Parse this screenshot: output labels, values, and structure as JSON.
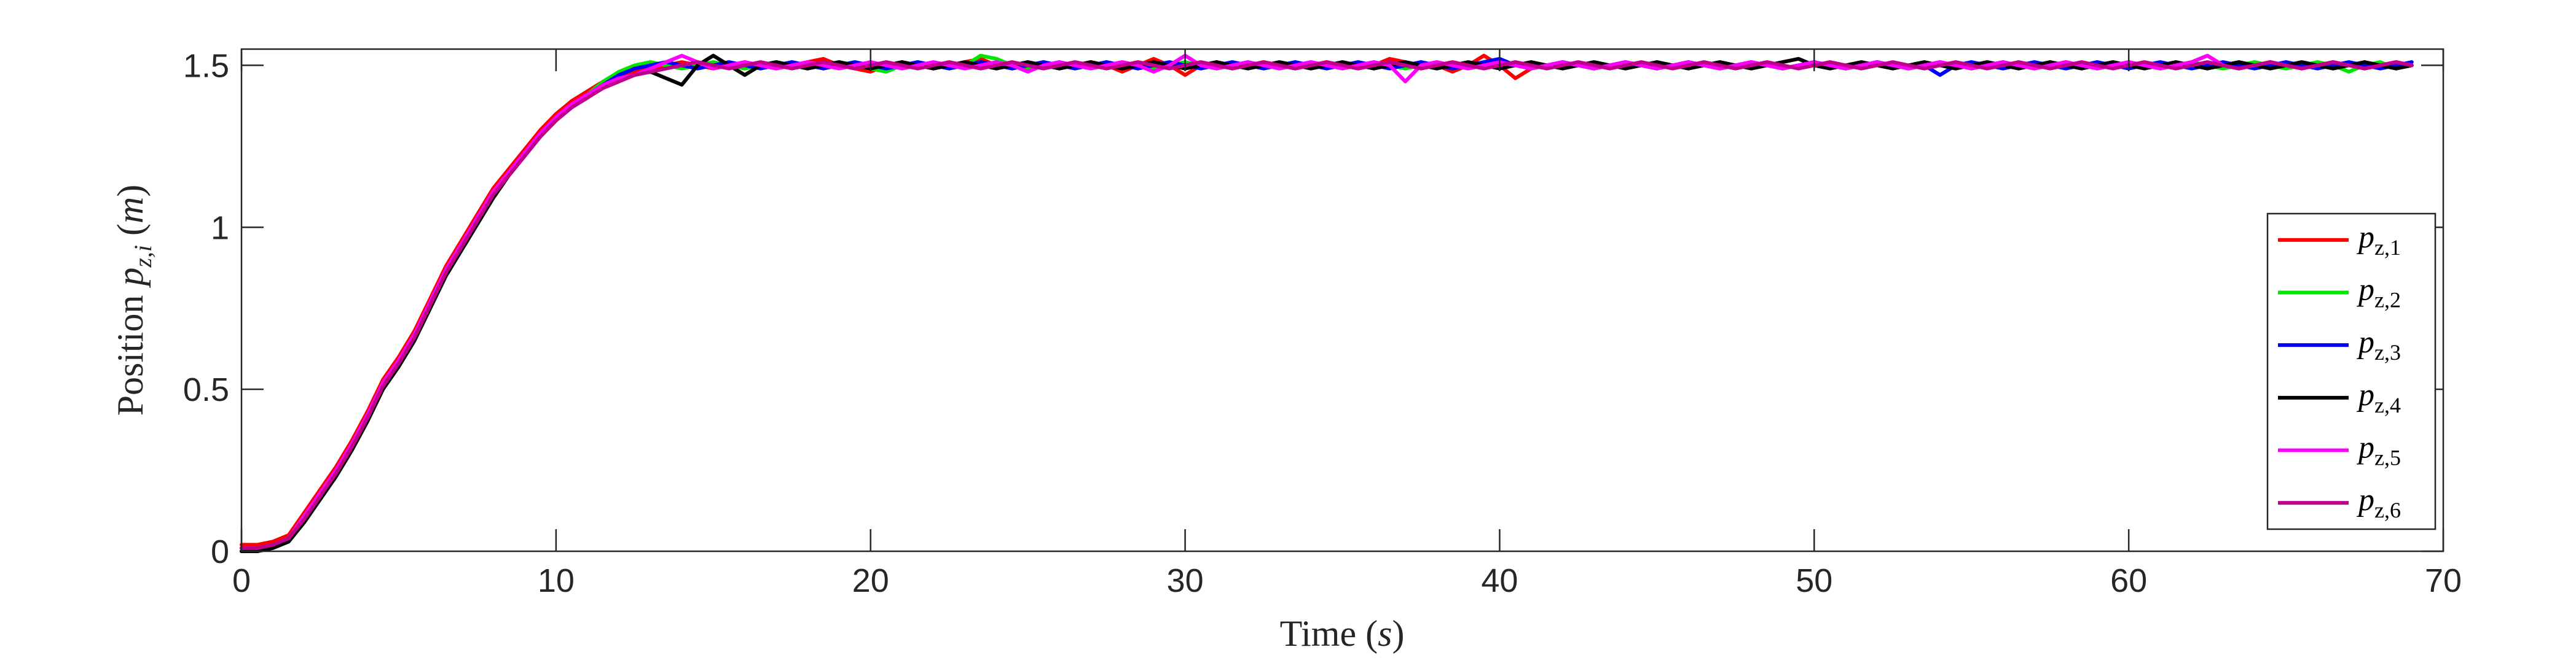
{
  "chart_data": {
    "type": "line",
    "title": "",
    "xlabel": "Time (s)",
    "ylabel": "Position p_{z,i} (m)",
    "xlim": [
      0,
      70
    ],
    "ylim": [
      0,
      1.55
    ],
    "x_ticks": [
      "0",
      "10",
      "20",
      "30",
      "40",
      "50",
      "60",
      "70"
    ],
    "y_ticks": [
      "0",
      "0.5",
      "1",
      "1.5"
    ],
    "grid": false,
    "legend_position": "bottom-right",
    "time_step": 0.5,
    "series": [
      {
        "name": "p_{z,1}",
        "color": "#ff0000",
        "values": [
          0.02,
          0.02,
          0.03,
          0.05,
          0.12,
          0.19,
          0.26,
          0.34,
          0.43,
          0.53,
          0.6,
          0.68,
          0.78,
          0.88,
          0.96,
          1.04,
          1.12,
          1.18,
          1.24,
          1.3,
          1.35,
          1.39,
          1.42,
          1.45,
          1.47,
          1.48,
          1.49,
          1.5,
          1.51,
          1.5,
          1.49,
          1.5,
          1.51,
          1.5,
          1.49,
          1.5,
          1.51,
          1.52,
          1.5,
          1.49,
          1.48,
          1.5,
          1.51,
          1.5,
          1.49,
          1.5,
          1.51,
          1.52,
          1.5,
          1.49,
          1.5,
          1.51,
          1.49,
          1.5,
          1.51,
          1.5,
          1.48,
          1.5,
          1.52,
          1.5,
          1.47,
          1.5,
          1.51,
          1.49,
          1.5,
          1.51,
          1.5,
          1.49,
          1.5,
          1.51,
          1.5,
          1.49,
          1.5,
          1.52,
          1.51,
          1.49,
          1.5,
          1.48,
          1.5,
          1.53,
          1.5,
          1.46,
          1.49,
          1.5,
          1.51,
          1.5,
          1.49,
          1.5,
          1.51,
          1.5,
          1.49,
          1.5,
          1.51,
          1.5,
          1.49,
          1.5,
          1.51,
          1.5,
          1.49,
          1.5,
          1.51,
          1.5,
          1.49,
          1.5,
          1.51,
          1.5,
          1.49,
          1.5,
          1.51,
          1.5,
          1.49,
          1.5,
          1.51,
          1.5,
          1.49,
          1.5,
          1.51,
          1.5,
          1.49,
          1.5,
          1.51,
          1.5,
          1.49,
          1.5,
          1.51,
          1.53,
          1.5,
          1.49,
          1.5,
          1.51,
          1.5,
          1.49,
          1.5,
          1.51,
          1.5,
          1.49,
          1.5,
          1.51,
          1.5
        ]
      },
      {
        "name": "p_{z,2}",
        "color": "#00e600",
        "values": [
          0.01,
          0.01,
          0.02,
          0.04,
          0.11,
          0.18,
          0.25,
          0.33,
          0.42,
          0.52,
          0.59,
          0.67,
          0.77,
          0.87,
          0.95,
          1.03,
          1.11,
          1.17,
          1.23,
          1.29,
          1.34,
          1.38,
          1.41,
          1.45,
          1.48,
          1.5,
          1.51,
          1.5,
          1.49,
          1.5,
          1.51,
          1.5,
          1.49,
          1.5,
          1.51,
          1.5,
          1.49,
          1.5,
          1.51,
          1.5,
          1.49,
          1.48,
          1.5,
          1.51,
          1.5,
          1.49,
          1.5,
          1.53,
          1.52,
          1.5,
          1.49,
          1.5,
          1.51,
          1.5,
          1.49,
          1.5,
          1.51,
          1.5,
          1.49,
          1.5,
          1.51,
          1.5,
          1.49,
          1.5,
          1.51,
          1.5,
          1.49,
          1.5,
          1.51,
          1.5,
          1.49,
          1.5,
          1.51,
          1.5,
          1.49,
          1.5,
          1.51,
          1.5,
          1.49,
          1.5,
          1.51,
          1.5,
          1.49,
          1.5,
          1.51,
          1.5,
          1.49,
          1.5,
          1.51,
          1.5,
          1.49,
          1.5,
          1.51,
          1.5,
          1.49,
          1.5,
          1.51,
          1.5,
          1.49,
          1.5,
          1.51,
          1.5,
          1.49,
          1.5,
          1.51,
          1.5,
          1.49,
          1.5,
          1.51,
          1.5,
          1.49,
          1.5,
          1.51,
          1.5,
          1.49,
          1.5,
          1.51,
          1.5,
          1.49,
          1.5,
          1.51,
          1.5,
          1.49,
          1.5,
          1.51,
          1.5,
          1.49,
          1.5,
          1.51,
          1.5,
          1.49,
          1.5,
          1.51,
          1.5,
          1.48,
          1.5,
          1.51,
          1.49,
          1.5
        ]
      },
      {
        "name": "p_{z,3}",
        "color": "#0000ff",
        "values": [
          0.0,
          0.0,
          0.01,
          0.03,
          0.1,
          0.17,
          0.24,
          0.32,
          0.41,
          0.51,
          0.58,
          0.66,
          0.76,
          0.86,
          0.94,
          1.02,
          1.1,
          1.16,
          1.22,
          1.28,
          1.33,
          1.37,
          1.4,
          1.44,
          1.47,
          1.49,
          1.5,
          1.51,
          1.5,
          1.49,
          1.5,
          1.51,
          1.5,
          1.49,
          1.5,
          1.51,
          1.5,
          1.49,
          1.5,
          1.51,
          1.5,
          1.49,
          1.5,
          1.51,
          1.5,
          1.49,
          1.5,
          1.51,
          1.5,
          1.49,
          1.5,
          1.51,
          1.5,
          1.49,
          1.5,
          1.51,
          1.5,
          1.49,
          1.5,
          1.51,
          1.5,
          1.49,
          1.5,
          1.51,
          1.5,
          1.49,
          1.5,
          1.51,
          1.5,
          1.49,
          1.5,
          1.51,
          1.5,
          1.49,
          1.5,
          1.51,
          1.5,
          1.49,
          1.5,
          1.51,
          1.52,
          1.5,
          1.49,
          1.5,
          1.51,
          1.5,
          1.49,
          1.5,
          1.51,
          1.5,
          1.49,
          1.5,
          1.51,
          1.5,
          1.49,
          1.5,
          1.51,
          1.5,
          1.49,
          1.5,
          1.51,
          1.5,
          1.49,
          1.5,
          1.51,
          1.5,
          1.49,
          1.5,
          1.47,
          1.5,
          1.51,
          1.5,
          1.49,
          1.5,
          1.51,
          1.5,
          1.49,
          1.5,
          1.51,
          1.5,
          1.49,
          1.5,
          1.51,
          1.5,
          1.49,
          1.5,
          1.51,
          1.5,
          1.49,
          1.5,
          1.51,
          1.5,
          1.49,
          1.5,
          1.51,
          1.5,
          1.49,
          1.5,
          1.51
        ]
      },
      {
        "name": "p_{z,4}",
        "color": "#000000",
        "values": [
          0.0,
          0.0,
          0.01,
          0.03,
          0.09,
          0.16,
          0.23,
          0.31,
          0.4,
          0.5,
          0.57,
          0.65,
          0.75,
          0.85,
          0.93,
          1.01,
          1.09,
          1.16,
          1.22,
          1.28,
          1.33,
          1.37,
          1.41,
          1.44,
          1.46,
          1.47,
          1.48,
          1.46,
          1.44,
          1.5,
          1.53,
          1.5,
          1.47,
          1.5,
          1.51,
          1.5,
          1.49,
          1.5,
          1.51,
          1.5,
          1.49,
          1.5,
          1.51,
          1.5,
          1.49,
          1.5,
          1.51,
          1.5,
          1.49,
          1.5,
          1.51,
          1.5,
          1.49,
          1.5,
          1.51,
          1.5,
          1.49,
          1.5,
          1.51,
          1.5,
          1.49,
          1.5,
          1.51,
          1.5,
          1.49,
          1.5,
          1.51,
          1.5,
          1.49,
          1.5,
          1.51,
          1.5,
          1.49,
          1.5,
          1.51,
          1.5,
          1.49,
          1.5,
          1.51,
          1.5,
          1.49,
          1.5,
          1.51,
          1.5,
          1.49,
          1.5,
          1.51,
          1.5,
          1.49,
          1.5,
          1.51,
          1.5,
          1.49,
          1.5,
          1.51,
          1.5,
          1.49,
          1.5,
          1.51,
          1.52,
          1.5,
          1.49,
          1.5,
          1.51,
          1.5,
          1.49,
          1.5,
          1.51,
          1.5,
          1.49,
          1.5,
          1.51,
          1.5,
          1.49,
          1.5,
          1.51,
          1.5,
          1.49,
          1.5,
          1.51,
          1.5,
          1.49,
          1.5,
          1.51,
          1.5,
          1.49,
          1.5,
          1.51,
          1.5,
          1.49,
          1.5,
          1.51,
          1.5,
          1.49,
          1.5,
          1.51,
          1.5,
          1.49,
          1.5
        ]
      },
      {
        "name": "p_{z,5}",
        "color": "#ff00ff",
        "values": [
          0.01,
          0.01,
          0.02,
          0.04,
          0.11,
          0.18,
          0.25,
          0.33,
          0.42,
          0.52,
          0.59,
          0.67,
          0.77,
          0.87,
          0.95,
          1.03,
          1.11,
          1.17,
          1.23,
          1.29,
          1.34,
          1.38,
          1.41,
          1.44,
          1.46,
          1.47,
          1.49,
          1.51,
          1.53,
          1.51,
          1.49,
          1.5,
          1.51,
          1.5,
          1.49,
          1.5,
          1.51,
          1.5,
          1.49,
          1.5,
          1.51,
          1.5,
          1.49,
          1.5,
          1.51,
          1.5,
          1.49,
          1.5,
          1.51,
          1.5,
          1.48,
          1.5,
          1.51,
          1.5,
          1.49,
          1.5,
          1.51,
          1.5,
          1.48,
          1.5,
          1.53,
          1.5,
          1.49,
          1.5,
          1.51,
          1.5,
          1.49,
          1.5,
          1.51,
          1.5,
          1.49,
          1.5,
          1.51,
          1.5,
          1.45,
          1.5,
          1.51,
          1.5,
          1.49,
          1.5,
          1.51,
          1.5,
          1.49,
          1.5,
          1.51,
          1.5,
          1.49,
          1.5,
          1.51,
          1.5,
          1.49,
          1.5,
          1.51,
          1.5,
          1.49,
          1.5,
          1.51,
          1.5,
          1.49,
          1.5,
          1.51,
          1.5,
          1.49,
          1.5,
          1.51,
          1.5,
          1.49,
          1.5,
          1.51,
          1.5,
          1.49,
          1.5,
          1.51,
          1.5,
          1.49,
          1.5,
          1.51,
          1.5,
          1.49,
          1.5,
          1.51,
          1.5,
          1.49,
          1.5,
          1.51,
          1.53,
          1.5,
          1.49,
          1.5,
          1.51,
          1.5,
          1.49,
          1.5,
          1.51,
          1.5,
          1.49,
          1.5,
          1.51,
          1.5
        ]
      },
      {
        "name": "p_{z,6}",
        "color": "#c0008c",
        "values": [
          0.01,
          0.01,
          0.02,
          0.04,
          0.1,
          0.17,
          0.24,
          0.32,
          0.41,
          0.51,
          0.58,
          0.66,
          0.76,
          0.86,
          0.94,
          1.02,
          1.1,
          1.16,
          1.22,
          1.28,
          1.33,
          1.37,
          1.4,
          1.43,
          1.45,
          1.47,
          1.48,
          1.49,
          1.5,
          1.51,
          1.5,
          1.49,
          1.5,
          1.51,
          1.5,
          1.49,
          1.5,
          1.51,
          1.5,
          1.49,
          1.5,
          1.51,
          1.5,
          1.49,
          1.5,
          1.51,
          1.5,
          1.49,
          1.5,
          1.51,
          1.5,
          1.49,
          1.5,
          1.51,
          1.5,
          1.49,
          1.5,
          1.51,
          1.5,
          1.49,
          1.5,
          1.51,
          1.5,
          1.49,
          1.5,
          1.51,
          1.5,
          1.49,
          1.5,
          1.51,
          1.5,
          1.49,
          1.5,
          1.51,
          1.5,
          1.49,
          1.5,
          1.51,
          1.5,
          1.49,
          1.5,
          1.51,
          1.5,
          1.49,
          1.5,
          1.51,
          1.5,
          1.49,
          1.5,
          1.51,
          1.5,
          1.49,
          1.5,
          1.51,
          1.5,
          1.49,
          1.5,
          1.51,
          1.5,
          1.49,
          1.5,
          1.51,
          1.5,
          1.49,
          1.5,
          1.51,
          1.5,
          1.49,
          1.5,
          1.51,
          1.5,
          1.49,
          1.5,
          1.51,
          1.5,
          1.49,
          1.5,
          1.51,
          1.5,
          1.49,
          1.5,
          1.51,
          1.5,
          1.49,
          1.5,
          1.51,
          1.5,
          1.49,
          1.5,
          1.51,
          1.5,
          1.49,
          1.5,
          1.51,
          1.5,
          1.49,
          1.5,
          1.51,
          1.5
        ]
      }
    ]
  }
}
